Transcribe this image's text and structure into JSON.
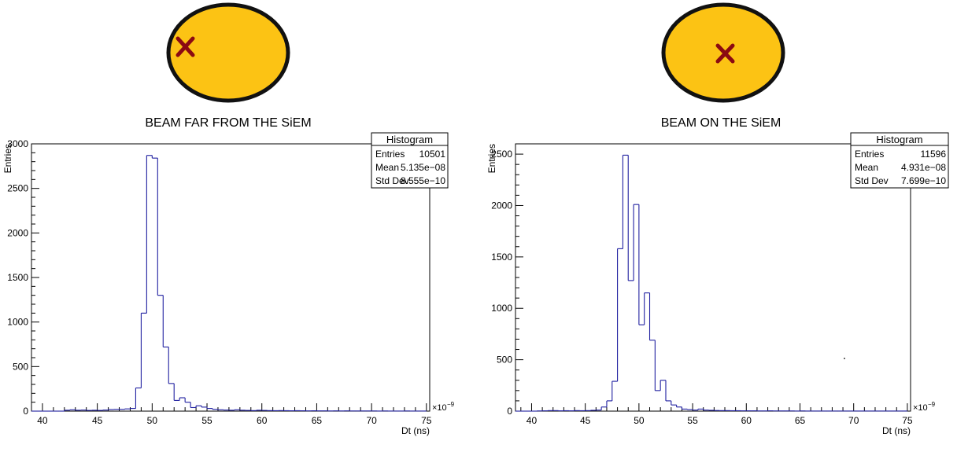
{
  "chart_data": [
    {
      "type": "histogram",
      "caption": "BEAM FAR FROM THE SiEM",
      "xlabel": "Dt (ns)",
      "ylabel": "Entries",
      "x_scale_label": "×10",
      "x_scale_exp": "−9",
      "xlim": [
        39,
        75.3
      ],
      "ylim": [
        0,
        3000
      ],
      "xticks": [
        40,
        45,
        50,
        55,
        60,
        65,
        70,
        75
      ],
      "yticks": [
        0,
        500,
        1000,
        1500,
        2000,
        2500,
        3000
      ],
      "bin_edges": [
        39.0,
        39.5,
        40.0,
        40.5,
        41.0,
        41.5,
        42.0,
        42.5,
        43.0,
        43.5,
        44.0,
        44.5,
        45.0,
        45.5,
        46.0,
        46.5,
        47.0,
        47.5,
        48.0,
        48.5,
        49.0,
        49.5,
        50.0,
        50.5,
        51.0,
        51.5,
        52.0,
        52.5,
        53.0,
        53.5,
        54.0,
        54.5,
        55.0,
        55.5,
        56.0,
        56.5,
        57.0,
        57.5,
        58.0,
        58.5,
        59.0,
        59.5,
        60.0,
        60.5,
        61.0,
        61.5,
        62.0,
        62.5,
        63.0,
        63.5,
        64.0,
        64.5,
        65.0,
        65.5,
        66.0,
        66.5,
        67.0,
        67.5,
        68.0,
        68.5,
        69.0,
        69.5,
        70.0,
        70.5,
        71.0,
        71.5,
        72.0,
        72.5,
        73.0,
        73.5,
        74.0,
        74.5,
        75.0
      ],
      "bin_counts": [
        0,
        0,
        0,
        0,
        0,
        0,
        10,
        15,
        10,
        12,
        8,
        10,
        8,
        12,
        18,
        20,
        20,
        25,
        30,
        260,
        1100,
        2870,
        2840,
        1300,
        720,
        310,
        120,
        150,
        100,
        40,
        60,
        45,
        30,
        20,
        15,
        12,
        10,
        15,
        10,
        8,
        6,
        10,
        8,
        6,
        5,
        6,
        5,
        4,
        5,
        4,
        3,
        4,
        3,
        3,
        2,
        3,
        2,
        3,
        2,
        2,
        2,
        2,
        2,
        1,
        2,
        1,
        1,
        1,
        2,
        1,
        1,
        1
      ],
      "stats": {
        "title": "Histogram",
        "rows": [
          {
            "label": "Entries",
            "value": "10501"
          },
          {
            "label": "Mean",
            "value": "5.135e−08"
          },
          {
            "label": "Std Dev",
            "value": "8.555e−10"
          }
        ]
      },
      "beam_diagram": {
        "fill": "#fcc314",
        "outline": "#111111",
        "cross_color": "#8b0a12",
        "marker_position": "left edge"
      }
    },
    {
      "type": "histogram",
      "caption": "BEAM ON THE SiEM",
      "xlabel": "Dt (ns)",
      "ylabel": "Entries",
      "x_scale_label": "×10",
      "x_scale_exp": "−9",
      "xlim": [
        38.5,
        75.3
      ],
      "ylim": [
        0,
        2600
      ],
      "xticks": [
        40,
        45,
        50,
        55,
        60,
        65,
        70,
        75
      ],
      "yticks": [
        0,
        500,
        1000,
        1500,
        2000,
        2500
      ],
      "bin_edges": [
        38.5,
        39.0,
        39.5,
        40.0,
        40.5,
        41.0,
        41.5,
        42.0,
        42.5,
        43.0,
        43.5,
        44.0,
        44.5,
        45.0,
        45.5,
        46.0,
        46.5,
        47.0,
        47.5,
        48.0,
        48.5,
        49.0,
        49.5,
        50.0,
        50.5,
        51.0,
        51.5,
        52.0,
        52.5,
        53.0,
        53.5,
        54.0,
        54.5,
        55.0,
        55.5,
        56.0,
        56.5,
        57.0,
        57.5,
        58.0,
        58.5,
        59.0,
        59.5,
        60.0,
        60.5,
        61.0,
        61.5,
        62.0,
        62.5,
        63.0,
        63.5,
        64.0,
        64.5,
        65.0,
        65.5,
        66.0,
        66.5,
        67.0,
        67.5,
        68.0,
        68.5,
        69.0,
        69.5,
        70.0,
        70.5,
        71.0,
        71.5,
        72.0,
        72.5,
        73.0,
        73.5,
        74.0,
        74.5,
        75.0
      ],
      "bin_counts": [
        0,
        0,
        0,
        0,
        2,
        3,
        5,
        5,
        3,
        4,
        3,
        5,
        4,
        5,
        8,
        10,
        40,
        100,
        290,
        1580,
        2490,
        1270,
        2010,
        840,
        1150,
        690,
        200,
        300,
        100,
        60,
        40,
        20,
        15,
        10,
        20,
        10,
        8,
        6,
        5,
        5,
        4,
        4,
        3,
        3,
        3,
        2,
        2,
        3,
        2,
        2,
        2,
        2,
        1,
        2,
        1,
        1,
        1,
        1,
        1,
        1,
        1,
        1,
        1,
        1,
        1,
        1,
        1,
        1,
        1,
        1,
        1,
        1,
        1
      ],
      "stats": {
        "title": "Histogram",
        "rows": [
          {
            "label": "Entries",
            "value": "11596"
          },
          {
            "label": "Mean",
            "value": "4.931e−08"
          },
          {
            "label": "Std Dev",
            "value": "7.699e−10"
          }
        ]
      },
      "beam_diagram": {
        "fill": "#fcc314",
        "outline": "#111111",
        "cross_color": "#8b0a12",
        "marker_position": "center"
      }
    }
  ]
}
